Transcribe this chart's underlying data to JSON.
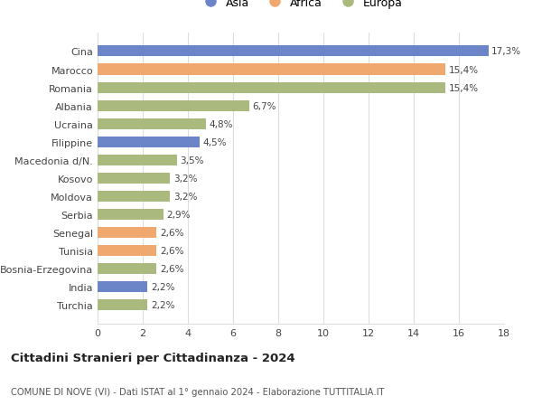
{
  "categories": [
    "Turchia",
    "India",
    "Bosnia-Erzegovina",
    "Tunisia",
    "Senegal",
    "Serbia",
    "Moldova",
    "Kosovo",
    "Macedonia d/N.",
    "Filippine",
    "Ucraina",
    "Albania",
    "Romania",
    "Marocco",
    "Cina"
  ],
  "values": [
    2.2,
    2.2,
    2.6,
    2.6,
    2.6,
    2.9,
    3.2,
    3.2,
    3.5,
    4.5,
    4.8,
    6.7,
    15.4,
    15.4,
    17.3
  ],
  "labels": [
    "2,2%",
    "2,2%",
    "2,6%",
    "2,6%",
    "2,6%",
    "2,9%",
    "3,2%",
    "3,2%",
    "3,5%",
    "4,5%",
    "4,8%",
    "6,7%",
    "15,4%",
    "15,4%",
    "17,3%"
  ],
  "colors": [
    "#aab97d",
    "#6b85c8",
    "#aab97d",
    "#f0a86e",
    "#f0a86e",
    "#aab97d",
    "#aab97d",
    "#aab97d",
    "#aab97d",
    "#6b85c8",
    "#aab97d",
    "#aab97d",
    "#aab97d",
    "#f0a86e",
    "#6b85c8"
  ],
  "legend_labels": [
    "Asia",
    "Africa",
    "Europa"
  ],
  "legend_colors": [
    "#6b85c8",
    "#f0a86e",
    "#aab97d"
  ],
  "title": "Cittadini Stranieri per Cittadinanza - 2024",
  "subtitle": "COMUNE DI NOVE (VI) - Dati ISTAT al 1° gennaio 2024 - Elaborazione TUTTITALIA.IT",
  "xlim": [
    0,
    18
  ],
  "xticks": [
    0,
    2,
    4,
    6,
    8,
    10,
    12,
    14,
    16,
    18
  ],
  "background_color": "#ffffff",
  "grid_color": "#dddddd",
  "bar_height": 0.6
}
